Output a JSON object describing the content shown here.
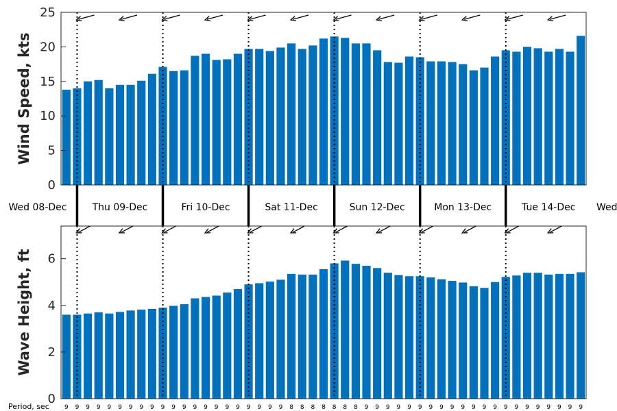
{
  "chart_data": [
    {
      "type": "bar",
      "ylabel": "Wind Speed, kts",
      "ylim": [
        0,
        25
      ],
      "yticks": [
        0,
        5,
        10,
        15,
        20,
        25
      ],
      "color": "#0072BD",
      "values": [
        13.8,
        14.0,
        15.0,
        15.2,
        14.0,
        14.5,
        14.5,
        15.1,
        16.1,
        17.1,
        16.5,
        16.6,
        18.7,
        19.0,
        18.1,
        18.2,
        19.0,
        19.7,
        19.7,
        19.4,
        19.9,
        20.5,
        19.7,
        20.2,
        21.2,
        21.5,
        21.3,
        20.5,
        20.5,
        19.5,
        17.8,
        17.7,
        18.6,
        18.5,
        17.9,
        17.9,
        17.8,
        17.5,
        16.6,
        17.0,
        18.6,
        19.5,
        19.3,
        20.0,
        19.8,
        19.3,
        19.7,
        19.3,
        21.6
      ],
      "direction_icon": "arrow-from-east-northeast-icon"
    },
    {
      "type": "bar",
      "ylabel": "Wave Height, ft",
      "ylim": [
        0,
        7.4
      ],
      "yticks": [
        0,
        2,
        4,
        6
      ],
      "color": "#0072BD",
      "values": [
        3.6,
        3.6,
        3.65,
        3.7,
        3.65,
        3.72,
        3.78,
        3.82,
        3.85,
        3.9,
        3.98,
        4.05,
        4.3,
        4.36,
        4.42,
        4.55,
        4.7,
        4.9,
        4.95,
        5.02,
        5.1,
        5.35,
        5.32,
        5.32,
        5.55,
        5.8,
        5.92,
        5.78,
        5.7,
        5.6,
        5.4,
        5.3,
        5.25,
        5.25,
        5.2,
        5.12,
        5.05,
        4.98,
        4.82,
        4.75,
        5.0,
        5.22,
        5.28,
        5.4,
        5.4,
        5.32,
        5.35,
        5.35,
        5.42
      ],
      "direction_icon": "arrow-from-northeast-icon"
    }
  ],
  "days": [
    "Wed 08-Dec",
    "Thu 09-Dec",
    "Fri 10-Dec",
    "Sat 11-Dec",
    "Sun 12-Dec",
    "Mon 13-Dec",
    "Tue 14-Dec",
    "Wed"
  ],
  "period_label": "Period, sec",
  "periods": [
    9,
    9,
    9,
    9,
    9,
    9,
    9,
    9,
    9,
    9,
    9,
    9,
    9,
    9,
    9,
    9,
    9,
    9,
    9,
    9,
    9,
    8,
    8,
    8,
    8,
    8,
    8,
    8,
    9,
    9,
    9,
    9,
    9,
    9,
    9,
    9,
    9,
    9,
    9,
    9,
    9,
    9,
    9,
    9,
    9,
    9,
    9,
    9,
    9
  ]
}
